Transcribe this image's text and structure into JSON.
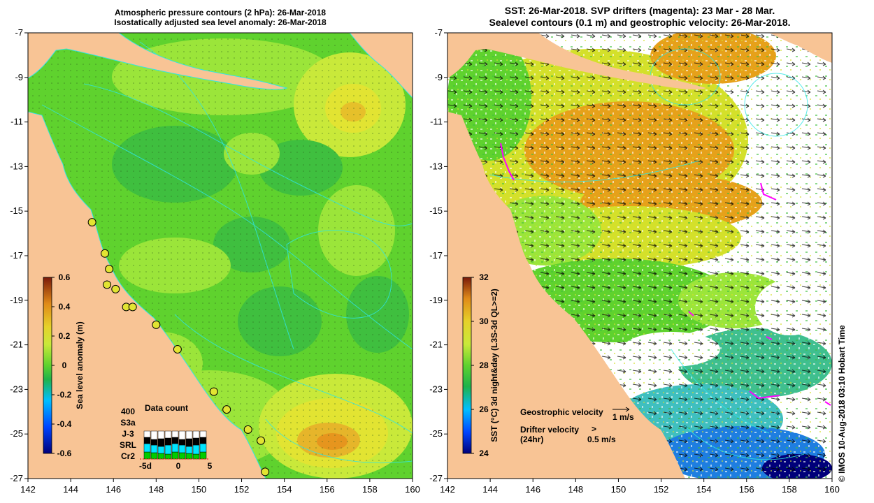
{
  "left_panel": {
    "title_line1": "Atmospheric pressure contours (2 hPa): 26-Mar-2018",
    "title_line2": "Isostatically adjusted sea level anomaly: 26-Mar-2018",
    "x_ticks": [
      "142",
      "144",
      "146",
      "148",
      "150",
      "152",
      "154",
      "156",
      "158",
      "160"
    ],
    "y_ticks": [
      "-7",
      "-9",
      "-11",
      "-13",
      "-15",
      "-17",
      "-19",
      "-21",
      "-23",
      "-25",
      "-27"
    ],
    "colorbar": {
      "label": "Sea level anomaly (m)",
      "ticks": [
        "0.6",
        "0.4",
        "0.2",
        "0",
        "-0.2",
        "-0.4",
        "-0.6"
      ]
    },
    "data_count": {
      "title": "Data count",
      "max_label": "400",
      "missions": [
        {
          "name": "S3a",
          "color": "#ffffff"
        },
        {
          "name": "J-3",
          "color": "#000000"
        },
        {
          "name": "SRL",
          "color": "#00e5ff"
        },
        {
          "name": "Cr2",
          "color": "#00cc00"
        }
      ],
      "x_labels": [
        "-5d",
        "0",
        "5"
      ]
    },
    "tide_gauges": [
      {
        "lon": 145.0,
        "lat": -15.5
      },
      {
        "lon": 145.6,
        "lat": -16.9
      },
      {
        "lon": 145.8,
        "lat": -17.6
      },
      {
        "lon": 145.7,
        "lat": -18.3
      },
      {
        "lon": 146.1,
        "lat": -18.5
      },
      {
        "lon": 146.6,
        "lat": -19.3
      },
      {
        "lon": 146.9,
        "lat": -19.3
      },
      {
        "lon": 148.0,
        "lat": -20.1
      },
      {
        "lon": 149.0,
        "lat": -21.2
      },
      {
        "lon": 150.7,
        "lat": -23.1
      },
      {
        "lon": 151.3,
        "lat": -23.9
      },
      {
        "lon": 152.3,
        "lat": -24.8
      },
      {
        "lon": 152.9,
        "lat": -25.3
      },
      {
        "lon": 153.1,
        "lat": -26.7
      }
    ]
  },
  "right_panel": {
    "title_line1": "SST: 26-Mar-2018. SVP drifters (magenta): 23 Mar - 28 Mar.",
    "title_line2": "Sealevel contours (0.1 m) and geostrophic velocity: 26-Mar-2018.",
    "x_ticks": [
      "142",
      "144",
      "146",
      "148",
      "150",
      "152",
      "154",
      "156",
      "158",
      "160"
    ],
    "y_ticks": [
      "-7",
      "-9",
      "-11",
      "-13",
      "-15",
      "-17",
      "-19",
      "-21",
      "-23",
      "-25",
      "-27"
    ],
    "colorbar": {
      "label": "SST (°C) 3d night&day (L3S-3d QL>=2)",
      "ticks": [
        "32",
        "30",
        "28",
        "26",
        "24"
      ]
    },
    "legend": {
      "geostrophic_label": "Geostrophic velocity",
      "geostrophic_scale": "1 m/s",
      "drifter_label_line1": "Drifter velocity",
      "drifter_label_line2": "(24hr)",
      "drifter_scale": "0.5 m/s",
      "drifter_marker": ">"
    }
  },
  "footer_credit": "© IMOS 10-Aug-2018 03:10 Hobart Time",
  "colors": {
    "land": "#f8c495",
    "ocean_green": "#5fd22e",
    "ocean_lightgreen": "#9be53a",
    "yellow": "#e2e432",
    "orange": "#e6a11a",
    "deep_orange": "#dd7a16",
    "cyan_line": "#2ee6e6",
    "magenta": "#ff00ff",
    "no_data": "#ffffff"
  }
}
